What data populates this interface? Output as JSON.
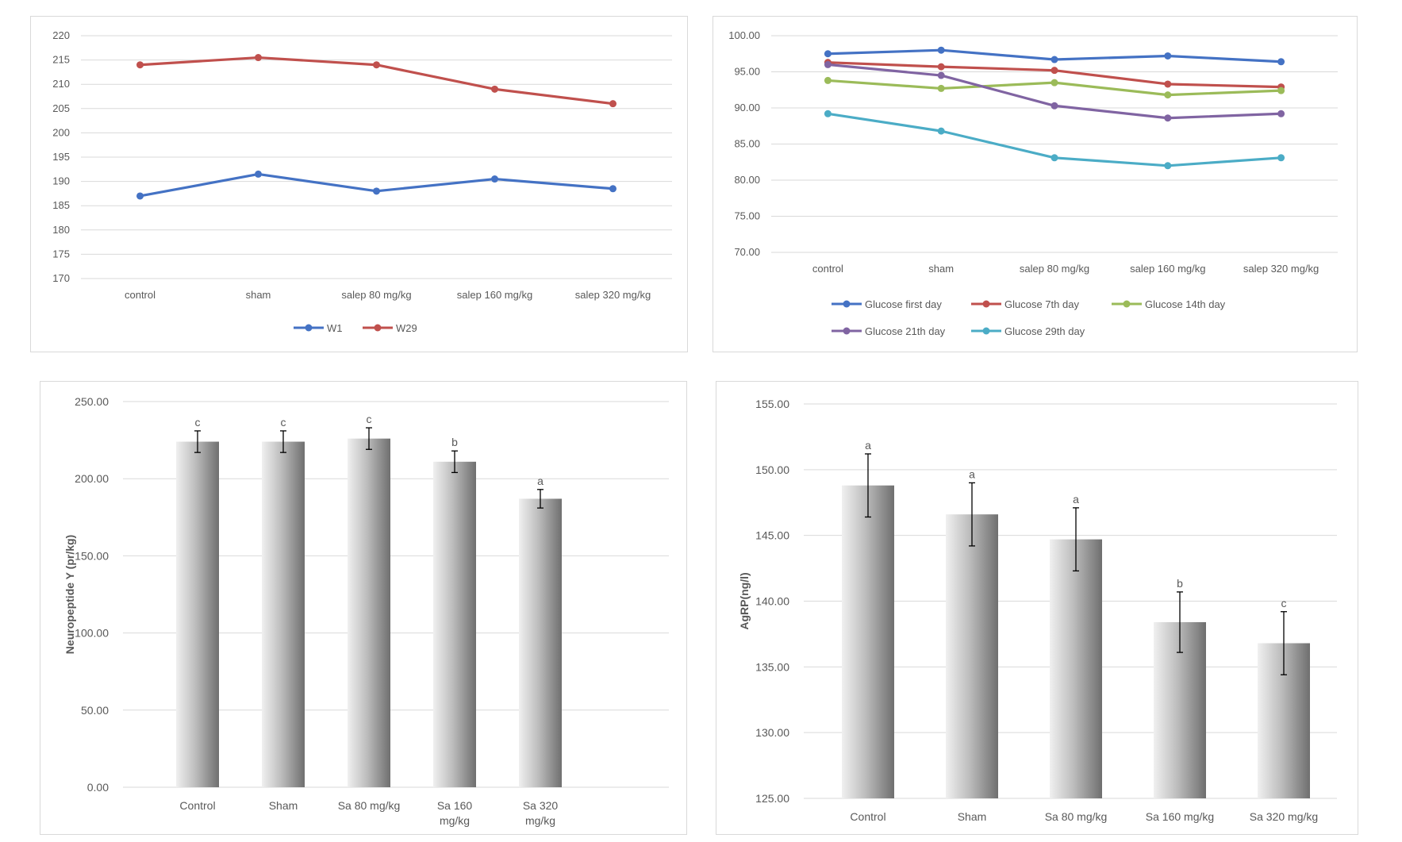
{
  "chart_data": [
    {
      "type": "line",
      "categories": [
        "control",
        "sham",
        "salep 80 mg/kg",
        "salep 160 mg/kg",
        "salep 320 mg/kg"
      ],
      "series": [
        {
          "name": "W1",
          "color": "#4472c4",
          "values": [
            187.0,
            191.5,
            188.0,
            190.5,
            188.5
          ]
        },
        {
          "name": "W29",
          "color": "#c0504d",
          "values": [
            214.0,
            215.5,
            214.0,
            209.0,
            206.0
          ]
        }
      ],
      "ylim": [
        170,
        220
      ],
      "yticks": [
        "220",
        "215",
        "210",
        "205",
        "200",
        "195",
        "190",
        "185",
        "180",
        "175",
        "170"
      ],
      "grid": true,
      "legend": "bottom"
    },
    {
      "type": "line",
      "categories": [
        "control",
        "sham",
        "salep 80 mg/kg",
        "salep 160 mg/kg",
        "salep 320 mg/kg"
      ],
      "series": [
        {
          "name": "Glucose first day",
          "color": "#4472c4",
          "values": [
            97.5,
            98.0,
            96.7,
            97.2,
            96.4
          ]
        },
        {
          "name": "Glucose 7th day",
          "color": "#c0504d",
          "values": [
            96.3,
            95.7,
            95.2,
            93.3,
            92.9
          ]
        },
        {
          "name": "Glucose 14th day",
          "color": "#9bbb59",
          "values": [
            93.8,
            92.7,
            93.5,
            91.8,
            92.4
          ]
        },
        {
          "name": "Glucose 21th day",
          "color": "#8064a2",
          "values": [
            96.0,
            94.5,
            90.3,
            88.6,
            89.2
          ]
        },
        {
          "name": "Glucose 29th day",
          "color": "#4bacc6",
          "values": [
            89.2,
            86.8,
            83.1,
            82.0,
            83.1
          ]
        }
      ],
      "ylim": [
        70,
        100
      ],
      "yticks": [
        "100.00",
        "95.00",
        "90.00",
        "85.00",
        "80.00",
        "75.00",
        "70.00"
      ],
      "grid": true,
      "legend": "bottom"
    },
    {
      "type": "bar",
      "categories": [
        [
          "Control"
        ],
        [
          "Sham"
        ],
        [
          "Sa 80 mg/kg"
        ],
        [
          "Sa 160",
          "mg/kg"
        ],
        [
          "Sa 320",
          "mg/kg"
        ]
      ],
      "values": [
        224,
        224,
        226,
        211,
        187
      ],
      "errors": [
        7,
        7,
        7,
        7,
        6
      ],
      "letters": [
        "c",
        "c",
        "c",
        "b",
        "a"
      ],
      "ylabel": "Neuropeptide Y (pr/kg)",
      "ylim": [
        0,
        250
      ],
      "yticks": [
        "250.00",
        "200.00",
        "150.00",
        "100.00",
        "50.00",
        "0.00"
      ],
      "grid": true
    },
    {
      "type": "bar",
      "categories": [
        [
          "Control"
        ],
        [
          "Sham"
        ],
        [
          "Sa 80 mg/kg"
        ],
        [
          "Sa 160 mg/kg"
        ],
        [
          "Sa 320 mg/kg"
        ]
      ],
      "values": [
        148.8,
        146.6,
        144.7,
        138.4,
        136.8
      ],
      "errors": [
        2.4,
        2.4,
        2.4,
        2.3,
        2.4
      ],
      "letters": [
        "a",
        "a",
        "a",
        "b",
        "c"
      ],
      "ylabel": "AgRP(ng/l)",
      "ylim": [
        125,
        155
      ],
      "yticks": [
        "155.00",
        "150.00",
        "145.00",
        "140.00",
        "135.00",
        "130.00",
        "125.00"
      ],
      "grid": true
    }
  ]
}
